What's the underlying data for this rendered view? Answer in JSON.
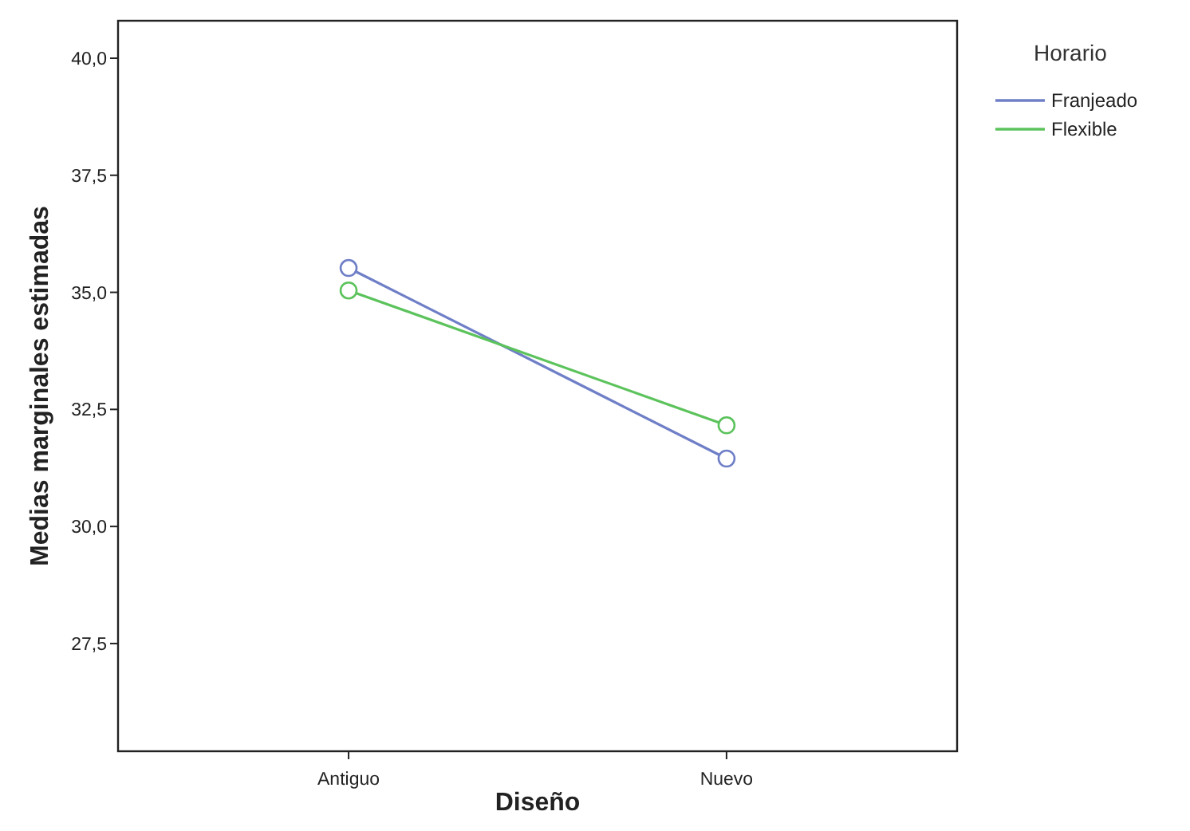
{
  "chart_data": {
    "type": "line",
    "xlabel": "Diseño",
    "ylabel": "Medias marginales estimadas",
    "legend_title": "Horario",
    "categories": [
      "Antiguo",
      "Nuevo"
    ],
    "series": [
      {
        "name": "Franjeado",
        "color": "#6f7fc7",
        "values": [
          35.52,
          31.45
        ]
      },
      {
        "name": "Flexible",
        "color": "#5cc35c",
        "values": [
          35.04,
          32.16
        ]
      }
    ],
    "ylim": [
      25.2,
      40.8
    ],
    "yticks": [
      {
        "value": 27.5,
        "label": "27,5"
      },
      {
        "value": 30,
        "label": "30,0"
      },
      {
        "value": 32.5,
        "label": "32,5"
      },
      {
        "value": 35,
        "label": "35,0"
      },
      {
        "value": 37.5,
        "label": "37,5"
      },
      {
        "value": 40,
        "label": "40,0"
      }
    ],
    "grid": false,
    "legend": "top right",
    "marker": "circle",
    "line_style": "solid"
  }
}
